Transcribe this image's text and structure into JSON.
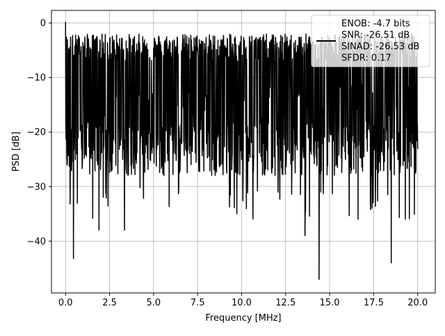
{
  "chart_data": {
    "type": "line",
    "title": "",
    "xlabel": "Frequency [MHz]",
    "ylabel": "PSD [dB]",
    "xlim": [
      -0.8,
      21.0
    ],
    "ylim": [
      -49.5,
      2.3
    ],
    "xticks": [
      0.0,
      2.5,
      5.0,
      7.5,
      10.0,
      12.5,
      15.0,
      17.5,
      20.0
    ],
    "xtick_labels": [
      "0.0",
      "2.5",
      "5.0",
      "7.5",
      "10.0",
      "12.5",
      "15.0",
      "17.5",
      "20.0"
    ],
    "yticks": [
      0,
      -10,
      -20,
      -30,
      -40
    ],
    "ytick_labels": [
      "0",
      "−10",
      "−20",
      "−30",
      "−40"
    ],
    "grid": true,
    "legend": {
      "placement": "top-right",
      "entries": [
        "ENOB: -4.7 bits",
        "SNR: -26.51 dB",
        "SINAD: -26.53 dB",
        "SFDR: 0.17"
      ]
    },
    "series": [
      {
        "color": "#000000",
        "x_range": [
          0.0,
          20.0
        ],
        "noise_floor_mean_db": -15,
        "upper_envelope_db": -5,
        "lower_envelope_db": -30,
        "notable_points": [
          {
            "x": 0.0,
            "y": 0.2
          },
          {
            "x": 0.45,
            "y": -43.2
          },
          {
            "x": 1.9,
            "y": -38.0
          },
          {
            "x": 3.35,
            "y": -38.0
          },
          {
            "x": 13.6,
            "y": -39.0
          },
          {
            "x": 14.4,
            "y": -47.0
          },
          {
            "x": 18.5,
            "y": -44.0
          }
        ]
      }
    ]
  }
}
